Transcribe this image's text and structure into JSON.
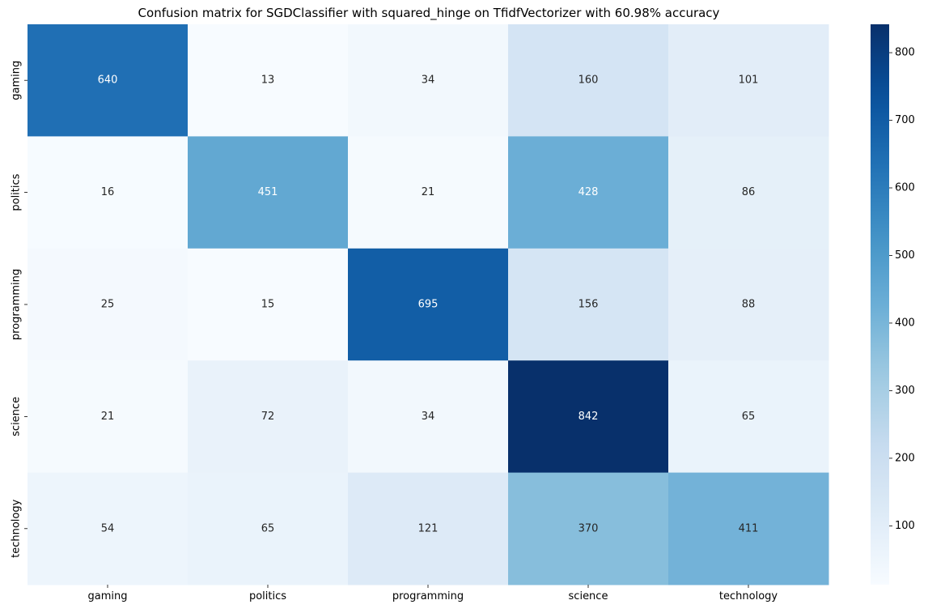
{
  "chart_data": {
    "type": "heatmap",
    "title": "Confusion matrix for SGDClassifier with squared_hinge on TfidfVectorizer with 60.98% accuracy",
    "xlabel": "",
    "ylabel": "",
    "x_categories": [
      "gaming",
      "politics",
      "programming",
      "science",
      "technology"
    ],
    "y_categories": [
      "gaming",
      "politics",
      "programming",
      "science",
      "technology"
    ],
    "values": [
      [
        640,
        13,
        34,
        160,
        101
      ],
      [
        16,
        451,
        21,
        428,
        86
      ],
      [
        25,
        15,
        695,
        156,
        88
      ],
      [
        21,
        72,
        34,
        842,
        65
      ],
      [
        54,
        65,
        121,
        370,
        411
      ]
    ],
    "colormap": "Blues",
    "colorbar": {
      "ticks": [
        100,
        200,
        300,
        400,
        500,
        600,
        700,
        800
      ],
      "range": [
        13,
        842
      ]
    },
    "annotations": true,
    "grid": false,
    "legend": "colorbar-right"
  }
}
